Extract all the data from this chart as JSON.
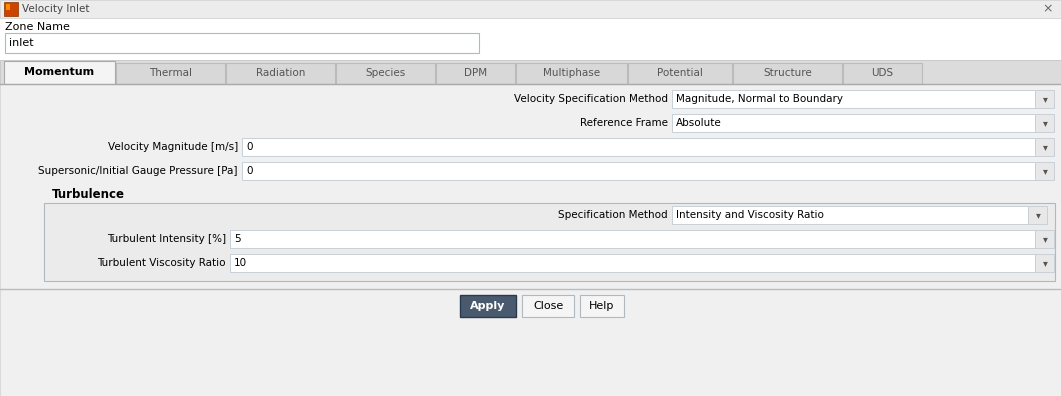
{
  "title": "Velocity Inlet",
  "bg_color": "#ffffff",
  "titlebar_bg": "#f0f0f0",
  "zone_name_label": "Zone Name",
  "zone_name_value": "inlet",
  "tabs": [
    "Momentum",
    "Thermal",
    "Radiation",
    "Species",
    "DPM",
    "Multiphase",
    "Potential",
    "Structure",
    "UDS"
  ],
  "active_tab": "Momentum",
  "vel_spec_label": "Velocity Specification Method",
  "vel_spec_value": "Magnitude, Normal to Boundary",
  "ref_frame_label": "Reference Frame",
  "ref_frame_value": "Absolute",
  "vel_mag_label": "Velocity Magnitude [m/s]",
  "vel_mag_value": "0",
  "supersonic_label": "Supersonic/Initial Gauge Pressure [Pa]",
  "supersonic_value": "0",
  "turbulence_label": "Turbulence",
  "spec_method_label": "Specification Method",
  "spec_method_value": "Intensity and Viscosity Ratio",
  "turb_intensity_label": "Turbulent Intensity [%]",
  "turb_intensity_value": "5",
  "turb_viscosity_label": "Turbulent Viscosity Ratio",
  "turb_viscosity_value": "10",
  "apply_bg": "#4a5a6e",
  "apply_fg": "#ffffff",
  "button_bg": "#f5f5f5",
  "button_fg": "#000000",
  "input_bg": "#ffffff",
  "border_color": "#b0b8c0",
  "light_border": "#c8d0d8",
  "dropdown_bg": "#ffffff",
  "dropdown_arrow": "▾",
  "close_x": "×",
  "tab_active_bg": "#ffffff",
  "tab_inactive_bg": "#e0e0e0",
  "content_bg": "#f0f2f4",
  "turb_box_bg": "#eef0f2"
}
